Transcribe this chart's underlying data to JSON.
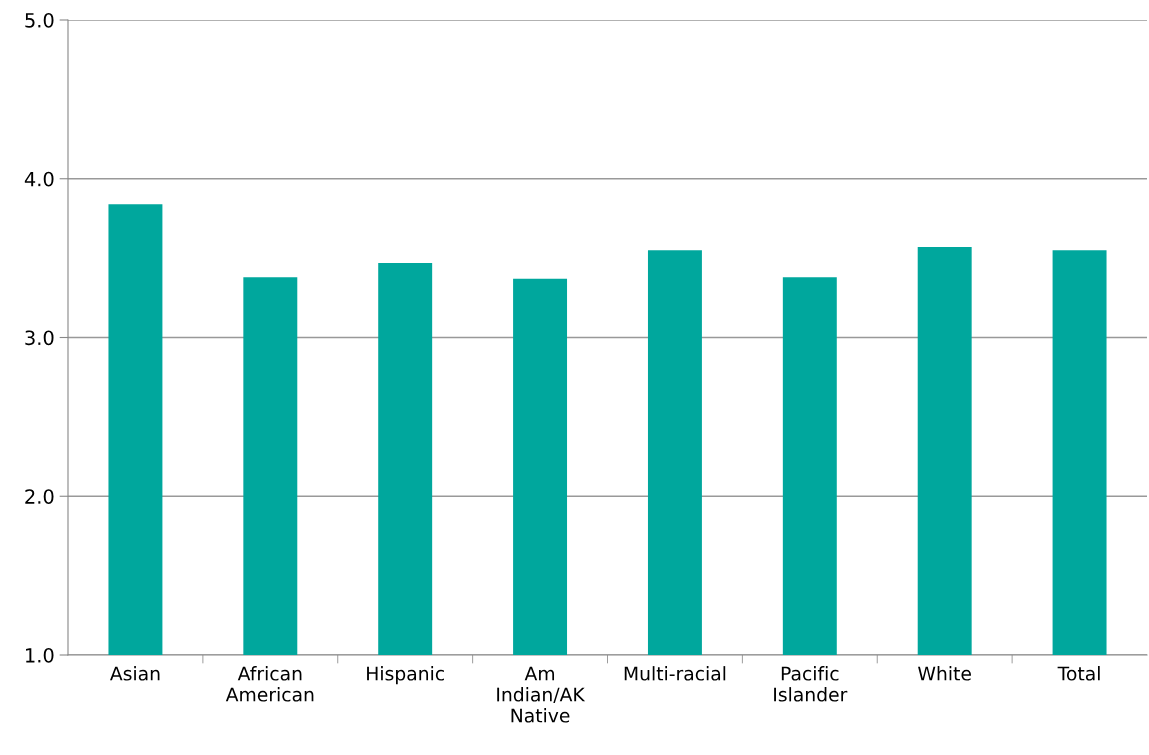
{
  "chart_data": {
    "type": "bar",
    "categories": [
      "Asian",
      "African\nAmerican",
      "Hispanic",
      "Am\nIndian/AK\nNative",
      "Multi-racial",
      "Pacific\nIslander",
      "White",
      "Total"
    ],
    "values": [
      3.84,
      3.38,
      3.47,
      3.37,
      3.55,
      3.38,
      3.57,
      3.55
    ],
    "color": "#00a79d",
    "ylim": [
      1.0,
      5.0
    ],
    "yticks": [
      {
        "value": 1.0,
        "label": "1.0"
      },
      {
        "value": 2.0,
        "label": "2.0"
      },
      {
        "value": 3.0,
        "label": "3.0"
      },
      {
        "value": 4.0,
        "label": "4.0"
      },
      {
        "value": 5.0,
        "label": "5.0"
      }
    ],
    "grid": "y"
  }
}
